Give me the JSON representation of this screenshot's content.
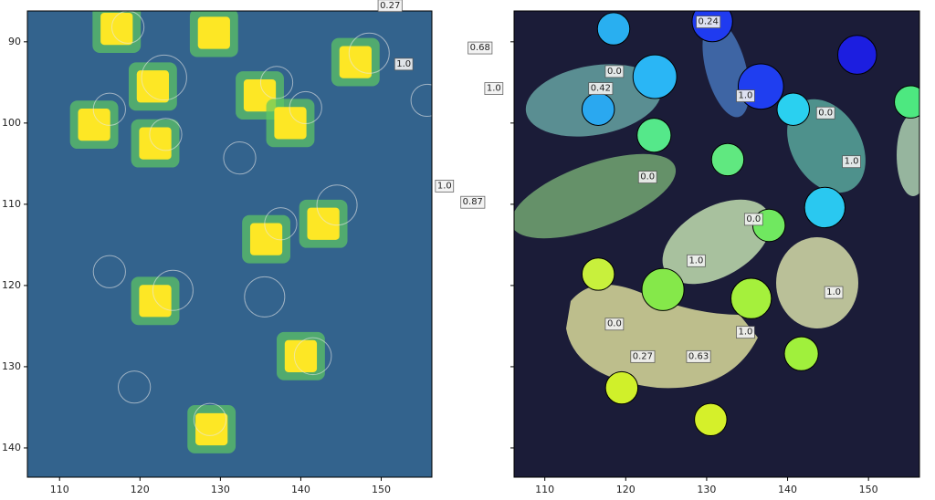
{
  "chart_data": [
    {
      "type": "image",
      "background": "#33638d",
      "spot_color": "#fde725",
      "halo_color": "#5ec962",
      "circle_color": "#e8e8e8",
      "xlim": [
        106,
        156.3
      ],
      "ylim": [
        143.6,
        86.2
      ],
      "xticks": [
        110,
        120,
        130,
        140,
        150
      ],
      "yticks": [
        90,
        100,
        110,
        120,
        130,
        140
      ],
      "show_ytick_labels": true,
      "spots": [
        {
          "x": 117.1,
          "y": 88.4
        },
        {
          "x": 129.2,
          "y": 88.9
        },
        {
          "x": 146.8,
          "y": 92.5
        },
        {
          "x": 121.6,
          "y": 95.5
        },
        {
          "x": 134.9,
          "y": 96.6
        },
        {
          "x": 114.3,
          "y": 100.2
        },
        {
          "x": 121.9,
          "y": 102.5
        },
        {
          "x": 138.7,
          "y": 100
        },
        {
          "x": 142.8,
          "y": 112.4
        },
        {
          "x": 135.7,
          "y": 114.3
        },
        {
          "x": 121.9,
          "y": 121.9
        },
        {
          "x": 140,
          "y": 128.7
        },
        {
          "x": 128.9,
          "y": 137.7
        }
      ],
      "circles": [
        {
          "x": 118.5,
          "y": 88.2,
          "r": 2.0
        },
        {
          "x": 123.0,
          "y": 94.4,
          "r": 2.8
        },
        {
          "x": 116.2,
          "y": 98.3,
          "r": 2.0
        },
        {
          "x": 123.2,
          "y": 101.4,
          "r": 2.0
        },
        {
          "x": 132.4,
          "y": 104.3,
          "r": 2.0
        },
        {
          "x": 137.0,
          "y": 95.0,
          "r": 2.0
        },
        {
          "x": 140.6,
          "y": 98.1,
          "r": 2.0
        },
        {
          "x": 148.5,
          "y": 91.4,
          "r": 2.5
        },
        {
          "x": 155.7,
          "y": 97.2,
          "r": 2.0
        },
        {
          "x": 144.5,
          "y": 110.1,
          "r": 2.5
        },
        {
          "x": 137.5,
          "y": 112.4,
          "r": 2.0
        },
        {
          "x": 116.2,
          "y": 118.3,
          "r": 2.0
        },
        {
          "x": 124.1,
          "y": 120.6,
          "r": 2.5
        },
        {
          "x": 135.5,
          "y": 121.4,
          "r": 2.5
        },
        {
          "x": 141.5,
          "y": 128.7,
          "r": 2.3
        },
        {
          "x": 119.3,
          "y": 132.5,
          "r": 2.0
        },
        {
          "x": 128.7,
          "y": 136.5,
          "r": 2.0
        }
      ],
      "annotations": [
        {
          "text": "1.0",
          "x": 152.8,
          "y": 92.7
        },
        {
          "text": "0.27",
          "x": 151.1,
          "y": 85.5
        }
      ]
    },
    {
      "type": "image",
      "background": "#1b1c38",
      "xlim": [
        106.2,
        156.3
      ],
      "ylim": [
        143.6,
        86.2
      ],
      "xticks": [
        110,
        120,
        130,
        140,
        150
      ],
      "yticks": [
        90,
        100,
        110,
        120,
        130,
        140
      ],
      "show_ytick_labels": false,
      "circles": [
        {
          "x": 118.5,
          "y": 88.4,
          "r": 2.0,
          "color": "#29aff0"
        },
        {
          "x": 123.6,
          "y": 94.3,
          "r": 2.7,
          "color": "#2ab6f5"
        },
        {
          "x": 116.6,
          "y": 98.3,
          "r": 2.0,
          "color": "#2aa8f0"
        },
        {
          "x": 130.7,
          "y": 87.5,
          "r": 2.5,
          "color": "#1f3bf0"
        },
        {
          "x": 136.7,
          "y": 95.5,
          "r": 2.8,
          "color": "#1f3ef0"
        },
        {
          "x": 148.6,
          "y": 91.6,
          "r": 2.4,
          "color": "#1c1ee0"
        },
        {
          "x": 140.7,
          "y": 98.3,
          "r": 2.0,
          "color": "#2ad0f0"
        },
        {
          "x": 144.6,
          "y": 110.4,
          "r": 2.5,
          "color": "#2ac8f0"
        },
        {
          "x": 155.2,
          "y": 97.4,
          "r": 2.0,
          "color": "#4de880"
        },
        {
          "x": 123.5,
          "y": 101.5,
          "r": 2.1,
          "color": "#55e88a"
        },
        {
          "x": 132.6,
          "y": 104.5,
          "r": 2.0,
          "color": "#60e880"
        },
        {
          "x": 137.7,
          "y": 112.6,
          "r": 2.0,
          "color": "#70e860"
        },
        {
          "x": 124.6,
          "y": 120.5,
          "r": 2.6,
          "color": "#85e84a"
        },
        {
          "x": 135.5,
          "y": 121.6,
          "r": 2.5,
          "color": "#a5f03c"
        },
        {
          "x": 116.6,
          "y": 118.6,
          "r": 2.0,
          "color": "#c8f03c"
        },
        {
          "x": 141.7,
          "y": 128.4,
          "r": 2.1,
          "color": "#a0f03c"
        },
        {
          "x": 119.5,
          "y": 132.6,
          "r": 2.0,
          "color": "#d0f02a"
        },
        {
          "x": 130.5,
          "y": 136.5,
          "r": 2.0,
          "color": "#d5f02a"
        }
      ],
      "annotations": [
        {
          "text": "0.24",
          "x": 130.2,
          "y": 87.5
        },
        {
          "text": "0.0",
          "x": 118.6,
          "y": 93.6
        },
        {
          "text": "0.42",
          "x": 116.9,
          "y": 95.7
        },
        {
          "text": "1.0",
          "x": 134.8,
          "y": 96.6
        },
        {
          "text": "0.0",
          "x": 144.7,
          "y": 98.7
        },
        {
          "text": "1.0",
          "x": 147.9,
          "y": 104.7
        },
        {
          "text": "0.0",
          "x": 122.7,
          "y": 106.6
        },
        {
          "text": "0.0",
          "x": 135.8,
          "y": 111.8
        },
        {
          "text": "1.0",
          "x": 128.7,
          "y": 116.9
        },
        {
          "text": "1.0",
          "x": 145.7,
          "y": 120.8
        },
        {
          "text": "0.0",
          "x": 118.6,
          "y": 124.7
        },
        {
          "text": "1.0",
          "x": 134.8,
          "y": 125.7
        },
        {
          "text": "0.27",
          "x": 122.1,
          "y": 128.7
        },
        {
          "text": "0.63",
          "x": 129.0,
          "y": 128.7
        },
        {
          "text": "0.68",
          "x": 102.0,
          "y": 90.7
        },
        {
          "text": "1.0",
          "x": 103.7,
          "y": 95.7
        },
        {
          "text": "1.0",
          "x": 97.6,
          "y": 107.7
        },
        {
          "text": "0.87",
          "x": 101.1,
          "y": 109.7
        }
      ]
    }
  ]
}
